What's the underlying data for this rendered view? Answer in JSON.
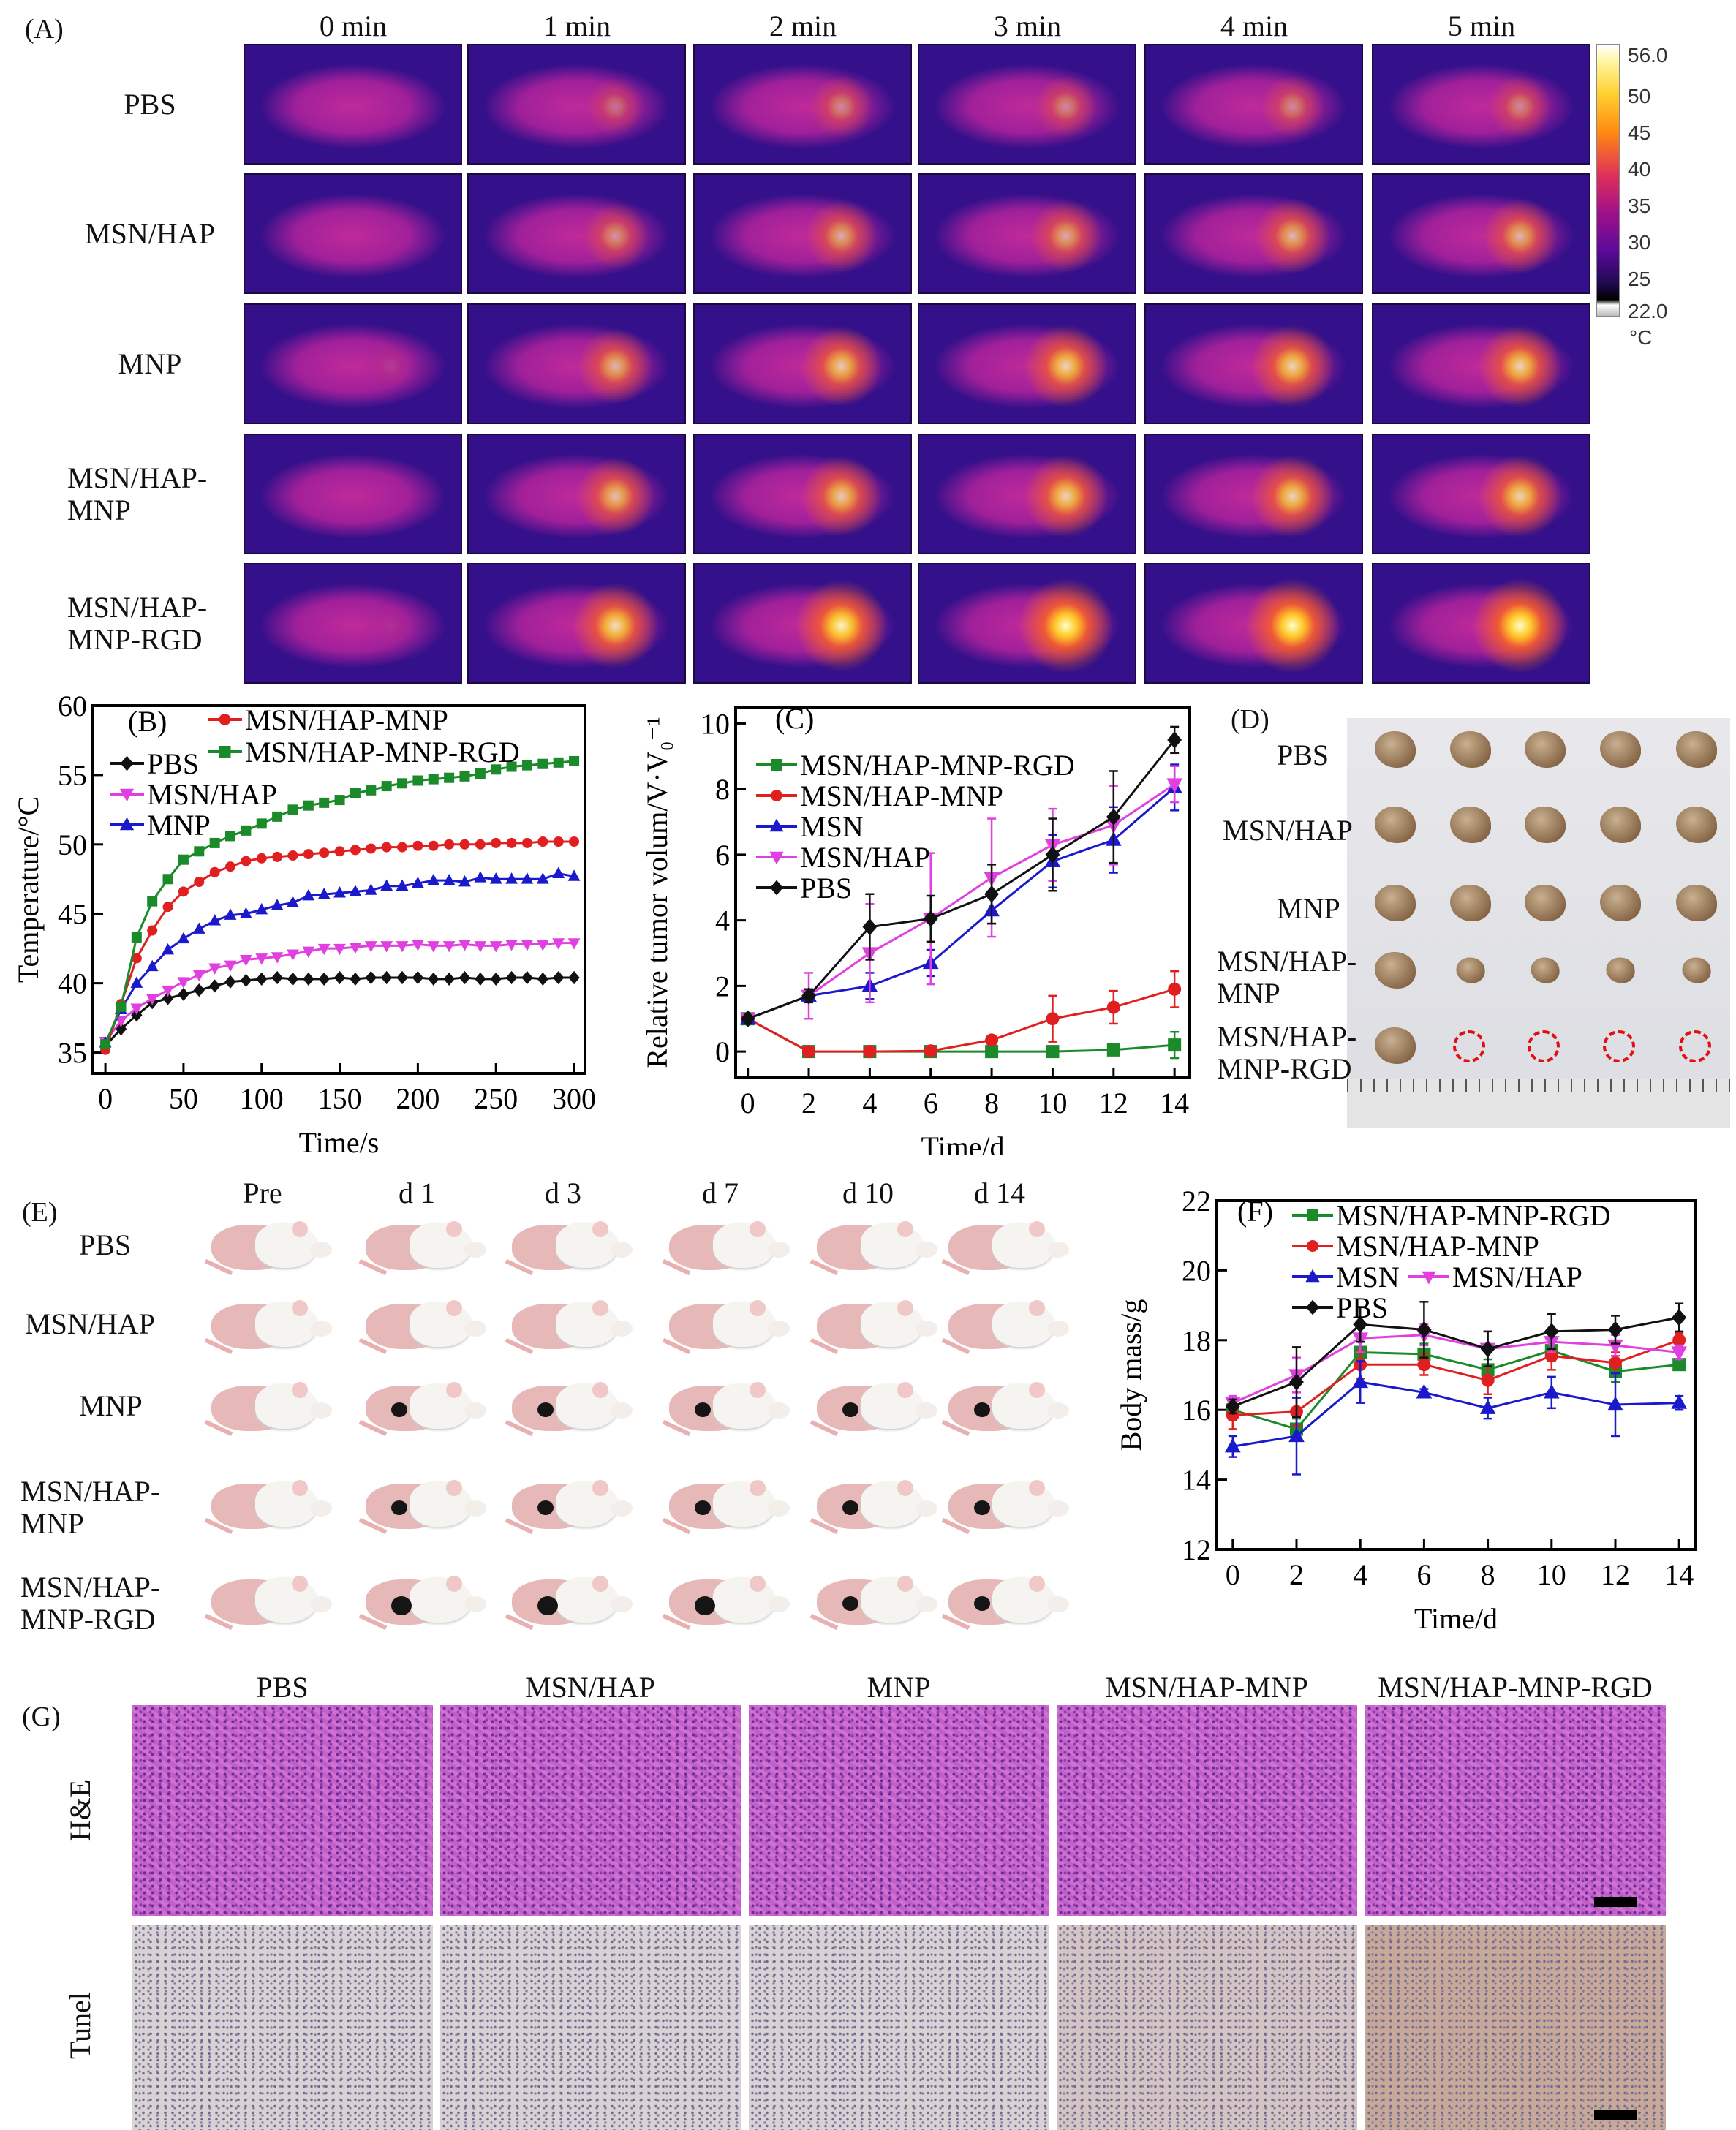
{
  "panel_labels": {
    "A": "(A)",
    "B": "(B)",
    "C": "(C)",
    "D": "(D)",
    "E": "(E)",
    "F": "(F)",
    "G": "(G)"
  },
  "panelA": {
    "time_labels": [
      "0 min",
      "1 min",
      "2 min",
      "3 min",
      "4 min",
      "5 min"
    ],
    "rows": [
      [
        "PBS"
      ],
      [
        "MSN/HAP"
      ],
      [
        "MNP"
      ],
      [
        "MSN/HAP-",
        "MNP"
      ],
      [
        "MSN/HAP-",
        "MNP-RGD"
      ]
    ],
    "colorbar": {
      "max": "56.0",
      "ticks": [
        "50",
        "45",
        "40",
        "35",
        "30",
        "25"
      ],
      "min": "22.0",
      "unit": "°C"
    }
  },
  "panelD": {
    "rows": [
      [
        "PBS"
      ],
      [
        "MSN/HAP"
      ],
      [
        "MNP"
      ],
      [
        "MSN/HAP-",
        "MNP"
      ],
      [
        "MSN/HAP-",
        "MNP-RGD"
      ]
    ]
  },
  "panelE": {
    "time_labels": [
      "Pre",
      "d 1",
      "d 3",
      "d 7",
      "d 10",
      "d 14"
    ],
    "rows": [
      [
        "PBS"
      ],
      [
        "MSN/HAP"
      ],
      [
        "MNP"
      ],
      [
        "MSN/HAP-",
        "MNP"
      ],
      [
        "MSN/HAP-",
        "MNP-RGD"
      ]
    ]
  },
  "panelG": {
    "columns": [
      "PBS",
      "MSN/HAP",
      "MNP",
      "MSN/HAP-MNP",
      "MSN/HAP-MNP-RGD"
    ],
    "rows": [
      "H&E",
      "Tunel"
    ]
  },
  "chart_data": [
    {
      "id": "B",
      "type": "line",
      "xlabel": "Time/s",
      "ylabel": "Temperature/°C",
      "xlim": [
        -8,
        307
      ],
      "ylim": [
        33.5,
        60
      ],
      "xticks": [
        0,
        50,
        100,
        150,
        200,
        250,
        300
      ],
      "yticks": [
        35,
        40,
        45,
        50,
        55,
        60
      ],
      "x": [
        0,
        10,
        20,
        30,
        40,
        50,
        60,
        70,
        80,
        90,
        100,
        110,
        120,
        130,
        140,
        150,
        160,
        170,
        180,
        190,
        200,
        210,
        220,
        230,
        240,
        250,
        260,
        270,
        280,
        290,
        300
      ],
      "series": [
        {
          "name": "PBS",
          "color": "#111111",
          "marker": "diamond",
          "values": [
            35.5,
            36.7,
            37.7,
            38.6,
            38.9,
            39.2,
            39.5,
            39.8,
            40.1,
            40.2,
            40.3,
            40.4,
            40.3,
            40.3,
            40.3,
            40.4,
            40.3,
            40.4,
            40.4,
            40.4,
            40.4,
            40.3,
            40.3,
            40.4,
            40.3,
            40.3,
            40.4,
            40.4,
            40.3,
            40.4,
            40.4
          ]
        },
        {
          "name": "MSN/HAP",
          "color": "#e040e0",
          "marker": "tri-down",
          "values": [
            35.8,
            37.3,
            38.2,
            38.9,
            39.5,
            40.1,
            40.6,
            41.1,
            41.3,
            41.7,
            41.8,
            41.9,
            42.1,
            42.3,
            42.5,
            42.5,
            42.6,
            42.7,
            42.7,
            42.7,
            42.8,
            42.7,
            42.7,
            42.8,
            42.7,
            42.7,
            42.8,
            42.8,
            42.8,
            42.9,
            42.9
          ]
        },
        {
          "name": "MNP",
          "color": "#1a1acc",
          "marker": "tri-up",
          "values": [
            35.7,
            38.1,
            40.0,
            41.2,
            42.4,
            43.2,
            43.9,
            44.5,
            44.9,
            45.0,
            45.3,
            45.6,
            45.8,
            46.3,
            46.4,
            46.5,
            46.6,
            46.7,
            47.0,
            47.0,
            47.2,
            47.4,
            47.4,
            47.3,
            47.6,
            47.5,
            47.5,
            47.5,
            47.5,
            47.9,
            47.7
          ]
        },
        {
          "name": "MSN/HAP-MNP",
          "color": "#e02020",
          "marker": "circle",
          "values": [
            35.2,
            38.5,
            41.8,
            43.8,
            45.5,
            46.6,
            47.3,
            48.0,
            48.4,
            48.8,
            49.0,
            49.1,
            49.2,
            49.3,
            49.4,
            49.5,
            49.6,
            49.7,
            49.8,
            49.8,
            49.9,
            49.9,
            50.0,
            50.0,
            50.0,
            50.1,
            50.1,
            50.1,
            50.2,
            50.2,
            50.2
          ]
        },
        {
          "name": "MSN/HAP-MNP-RGD",
          "color": "#1a8a2a",
          "marker": "square",
          "values": [
            35.6,
            38.3,
            43.3,
            45.9,
            47.5,
            48.9,
            49.5,
            50.1,
            50.6,
            51.0,
            51.5,
            52.0,
            52.5,
            52.8,
            53.0,
            53.2,
            53.7,
            53.9,
            54.2,
            54.4,
            54.6,
            54.7,
            54.8,
            54.9,
            55.1,
            55.4,
            55.6,
            55.7,
            55.8,
            55.9,
            56.0
          ]
        }
      ]
    },
    {
      "id": "C",
      "type": "line",
      "xlabel": "Time/d",
      "ylabel": "Relative tumor volum/V·V₀⁻¹",
      "xlim": [
        -0.4,
        14.5
      ],
      "ylim": [
        -0.8,
        10.5
      ],
      "xticks": [
        0,
        2,
        4,
        6,
        8,
        10,
        12,
        14
      ],
      "yticks": [
        0,
        2,
        4,
        6,
        8,
        10
      ],
      "x": [
        0,
        2,
        4,
        6,
        8,
        10,
        12,
        14
      ],
      "series": [
        {
          "name": "MSN/HAP-MNP-RGD",
          "color": "#1a8a2a",
          "marker": "square",
          "values": [
            1,
            0,
            0,
            0,
            0,
            0,
            0.05,
            0.2
          ],
          "errors": [
            0,
            0,
            0,
            0,
            0,
            0,
            0.05,
            0.4
          ]
        },
        {
          "name": "MSN/HAP-MNP",
          "color": "#e02020",
          "marker": "circle",
          "values": [
            1,
            0,
            0,
            0.02,
            0.35,
            1.0,
            1.35,
            1.9
          ],
          "errors": [
            0,
            0,
            0,
            0,
            0,
            0.7,
            0.5,
            0.55
          ]
        },
        {
          "name": "MSN",
          "color": "#1a1acc",
          "marker": "tri-up",
          "values": [
            1,
            1.7,
            2.0,
            2.7,
            4.3,
            5.8,
            6.45,
            8.05
          ],
          "errors": [
            0,
            0.2,
            0.4,
            0.4,
            0.4,
            0.8,
            1.0,
            0.7
          ]
        },
        {
          "name": "MSN/HAP",
          "color": "#e040e0",
          "marker": "tri-down",
          "values": [
            1,
            1.7,
            3.0,
            4.05,
            5.3,
            6.3,
            6.9,
            8.15
          ],
          "errors": [
            0,
            0.7,
            1.5,
            2.0,
            1.8,
            1.1,
            1.2,
            0.55
          ]
        },
        {
          "name": "PBS",
          "color": "#111111",
          "marker": "diamond",
          "values": [
            1,
            1.7,
            3.8,
            4.05,
            4.8,
            6.0,
            7.15,
            9.5
          ],
          "errors": [
            0,
            0.2,
            1.0,
            0.7,
            0.9,
            1.1,
            1.4,
            0.4
          ]
        }
      ]
    },
    {
      "id": "F",
      "type": "line",
      "xlabel": "Time/d",
      "ylabel": "Body mass/g",
      "xlim": [
        -0.5,
        14.5
      ],
      "ylim": [
        12,
        22
      ],
      "xticks": [
        0,
        2,
        4,
        6,
        8,
        10,
        12,
        14
      ],
      "yticks": [
        12,
        14,
        16,
        18,
        20,
        22
      ],
      "x": [
        0,
        2,
        4,
        6,
        8,
        10,
        12,
        14
      ],
      "series": [
        {
          "name": "MSN/HAP-MNP-RGD",
          "color": "#1a8a2a",
          "marker": "square",
          "values": [
            16.0,
            15.45,
            17.65,
            17.6,
            17.15,
            17.7,
            17.1,
            17.3
          ],
          "errors": [
            0.3,
            0.3,
            0.3,
            0.3,
            0.3,
            0.3,
            0.3,
            0.15
          ]
        },
        {
          "name": "MSN/HAP-MNP",
          "color": "#e02020",
          "marker": "circle",
          "values": [
            15.85,
            15.95,
            17.3,
            17.3,
            16.85,
            17.55,
            17.35,
            18.0
          ],
          "errors": [
            0.4,
            0.4,
            0.4,
            0.3,
            0.4,
            0.4,
            0.3,
            0.2
          ]
        },
        {
          "name": "MSN",
          "color": "#1a1acc",
          "marker": "tri-up",
          "values": [
            14.95,
            15.25,
            16.8,
            16.5,
            16.05,
            16.5,
            16.15,
            16.2
          ],
          "errors": [
            0.3,
            1.1,
            0.6,
            0.1,
            0.3,
            0.45,
            0.9,
            0.2
          ]
        },
        {
          "name": "MSN/HAP",
          "color": "#e040e0",
          "marker": "tri-down",
          "values": [
            16.2,
            17.0,
            18.05,
            18.15,
            17.75,
            17.95,
            17.85,
            17.65
          ],
          "errors": [
            0.2,
            0.5,
            0.4,
            0.3,
            0.5,
            0.3,
            0.3,
            0.2
          ]
        },
        {
          "name": "PBS",
          "color": "#111111",
          "marker": "diamond",
          "values": [
            16.1,
            16.8,
            18.45,
            18.3,
            17.75,
            18.25,
            18.3,
            18.65
          ],
          "errors": [
            0.2,
            1.0,
            0.5,
            0.8,
            0.5,
            0.5,
            0.4,
            0.4
          ]
        }
      ]
    }
  ]
}
